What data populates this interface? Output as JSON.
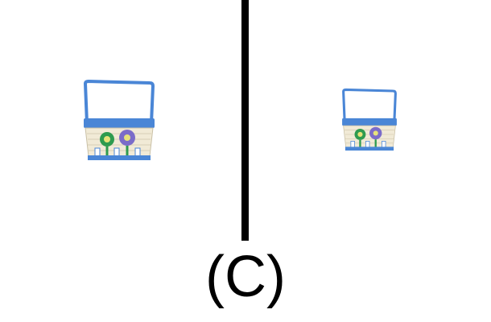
{
  "panel_label": "(C)",
  "images": {
    "left": "basket-icon",
    "right": "basket-icon"
  },
  "colors": {
    "divider": "#000000",
    "basket_blue": "#4a86d6",
    "basket_cream": "#f1ead6",
    "flower_green": "#2e9b4f",
    "flower_purple": "#7b6cc9"
  }
}
